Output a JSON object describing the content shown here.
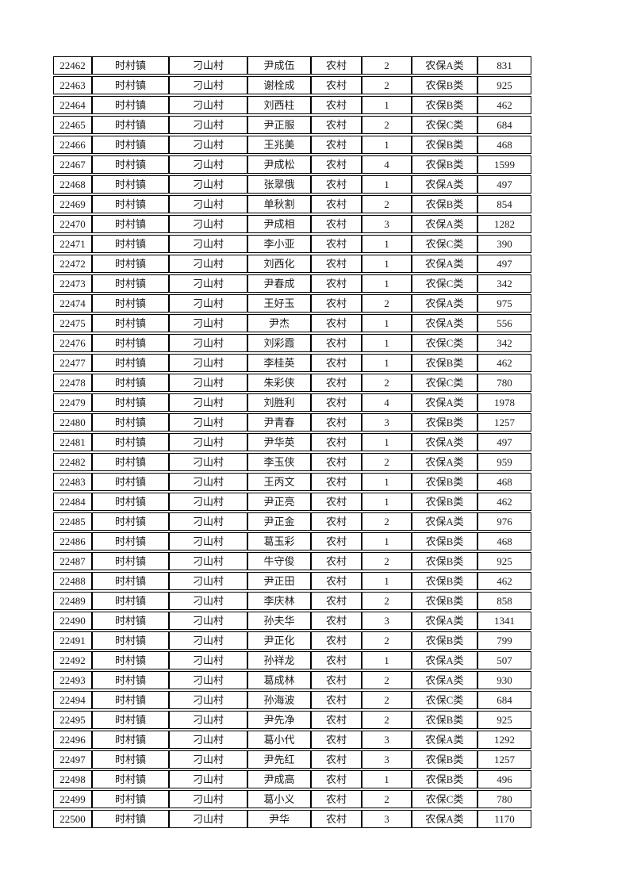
{
  "page": {
    "background": "#ffffff",
    "text_color": "#1c1c1c",
    "border_color": "#000000"
  },
  "table": {
    "rows": [
      [
        "22462",
        "时村镇",
        "刁山村",
        "尹成伍",
        "农村",
        "2",
        "农保A类",
        "831"
      ],
      [
        "22463",
        "时村镇",
        "刁山村",
        "谢栓成",
        "农村",
        "2",
        "农保B类",
        "925"
      ],
      [
        "22464",
        "时村镇",
        "刁山村",
        "刘西柱",
        "农村",
        "1",
        "农保B类",
        "462"
      ],
      [
        "22465",
        "时村镇",
        "刁山村",
        "尹正服",
        "农村",
        "2",
        "农保C类",
        "684"
      ],
      [
        "22466",
        "时村镇",
        "刁山村",
        "王兆美",
        "农村",
        "1",
        "农保B类",
        "468"
      ],
      [
        "22467",
        "时村镇",
        "刁山村",
        "尹成松",
        "农村",
        "4",
        "农保B类",
        "1599"
      ],
      [
        "22468",
        "时村镇",
        "刁山村",
        "张翠俄",
        "农村",
        "1",
        "农保A类",
        "497"
      ],
      [
        "22469",
        "时村镇",
        "刁山村",
        "单秋割",
        "农村",
        "2",
        "农保B类",
        "854"
      ],
      [
        "22470",
        "时村镇",
        "刁山村",
        "尹成相",
        "农村",
        "3",
        "农保A类",
        "1282"
      ],
      [
        "22471",
        "时村镇",
        "刁山村",
        "李小亚",
        "农村",
        "1",
        "农保C类",
        "390"
      ],
      [
        "22472",
        "时村镇",
        "刁山村",
        "刘西化",
        "农村",
        "1",
        "农保A类",
        "497"
      ],
      [
        "22473",
        "时村镇",
        "刁山村",
        "尹春成",
        "农村",
        "1",
        "农保C类",
        "342"
      ],
      [
        "22474",
        "时村镇",
        "刁山村",
        "王好玉",
        "农村",
        "2",
        "农保A类",
        "975"
      ],
      [
        "22475",
        "时村镇",
        "刁山村",
        "尹杰",
        "农村",
        "1",
        "农保A类",
        "556"
      ],
      [
        "22476",
        "时村镇",
        "刁山村",
        "刘彩霞",
        "农村",
        "1",
        "农保C类",
        "342"
      ],
      [
        "22477",
        "时村镇",
        "刁山村",
        "李桂英",
        "农村",
        "1",
        "农保B类",
        "462"
      ],
      [
        "22478",
        "时村镇",
        "刁山村",
        "朱彩侠",
        "农村",
        "2",
        "农保C类",
        "780"
      ],
      [
        "22479",
        "时村镇",
        "刁山村",
        "刘胜利",
        "农村",
        "4",
        "农保A类",
        "1978"
      ],
      [
        "22480",
        "时村镇",
        "刁山村",
        "尹青春",
        "农村",
        "3",
        "农保B类",
        "1257"
      ],
      [
        "22481",
        "时村镇",
        "刁山村",
        "尹华英",
        "农村",
        "1",
        "农保A类",
        "497"
      ],
      [
        "22482",
        "时村镇",
        "刁山村",
        "李玉侠",
        "农村",
        "2",
        "农保A类",
        "959"
      ],
      [
        "22483",
        "时村镇",
        "刁山村",
        "王丙文",
        "农村",
        "1",
        "农保B类",
        "468"
      ],
      [
        "22484",
        "时村镇",
        "刁山村",
        "尹正亮",
        "农村",
        "1",
        "农保B类",
        "462"
      ],
      [
        "22485",
        "时村镇",
        "刁山村",
        "尹正金",
        "农村",
        "2",
        "农保A类",
        "976"
      ],
      [
        "22486",
        "时村镇",
        "刁山村",
        "葛玉彩",
        "农村",
        "1",
        "农保B类",
        "468"
      ],
      [
        "22487",
        "时村镇",
        "刁山村",
        "牛守俊",
        "农村",
        "2",
        "农保B类",
        "925"
      ],
      [
        "22488",
        "时村镇",
        "刁山村",
        "尹正田",
        "农村",
        "1",
        "农保B类",
        "462"
      ],
      [
        "22489",
        "时村镇",
        "刁山村",
        "李庆林",
        "农村",
        "2",
        "农保B类",
        "858"
      ],
      [
        "22490",
        "时村镇",
        "刁山村",
        "孙夫华",
        "农村",
        "3",
        "农保A类",
        "1341"
      ],
      [
        "22491",
        "时村镇",
        "刁山村",
        "尹正化",
        "农村",
        "2",
        "农保B类",
        "799"
      ],
      [
        "22492",
        "时村镇",
        "刁山村",
        "孙祥龙",
        "农村",
        "1",
        "农保A类",
        "507"
      ],
      [
        "22493",
        "时村镇",
        "刁山村",
        "葛成林",
        "农村",
        "2",
        "农保A类",
        "930"
      ],
      [
        "22494",
        "时村镇",
        "刁山村",
        "孙海波",
        "农村",
        "2",
        "农保C类",
        "684"
      ],
      [
        "22495",
        "时村镇",
        "刁山村",
        "尹先净",
        "农村",
        "2",
        "农保B类",
        "925"
      ],
      [
        "22496",
        "时村镇",
        "刁山村",
        "葛小代",
        "农村",
        "3",
        "农保A类",
        "1292"
      ],
      [
        "22497",
        "时村镇",
        "刁山村",
        "尹先红",
        "农村",
        "3",
        "农保B类",
        "1257"
      ],
      [
        "22498",
        "时村镇",
        "刁山村",
        "尹成高",
        "农村",
        "1",
        "农保B类",
        "496"
      ],
      [
        "22499",
        "时村镇",
        "刁山村",
        "葛小义",
        "农村",
        "2",
        "农保C类",
        "780"
      ],
      [
        "22500",
        "时村镇",
        "刁山村",
        "尹华",
        "农村",
        "3",
        "农保A类",
        "1170"
      ]
    ]
  }
}
